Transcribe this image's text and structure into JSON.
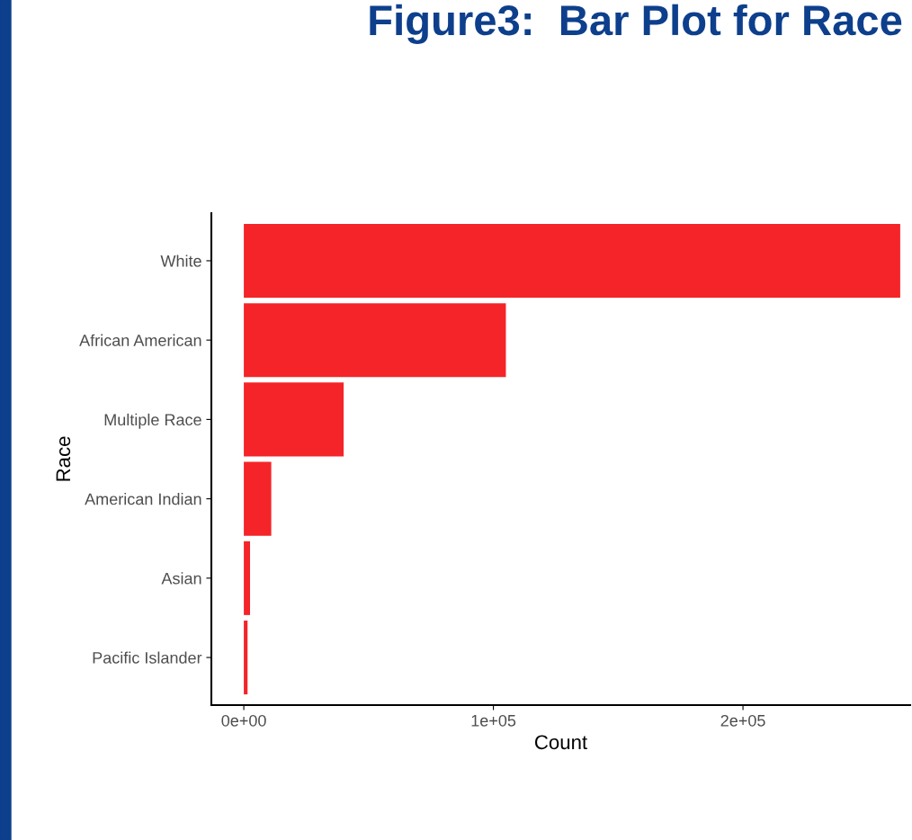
{
  "chart_data": {
    "type": "bar",
    "orientation": "horizontal",
    "title": "Figure3:  Bar Plot for Race",
    "xlabel": "Count",
    "ylabel": "Race",
    "categories": [
      "White",
      "African American",
      "Multiple Race",
      "American Indian",
      "Asian",
      "Pacific Islander"
    ],
    "values": [
      263000,
      105000,
      40000,
      11000,
      2500,
      1500
    ],
    "color": "#f42428",
    "xlim": [
      -13000,
      267000
    ],
    "xticks": [
      {
        "value": 0,
        "label": "0e+00"
      },
      {
        "value": 100000,
        "label": "1e+05"
      },
      {
        "value": 200000,
        "label": "2e+05"
      }
    ],
    "grid": false,
    "legend": false
  }
}
